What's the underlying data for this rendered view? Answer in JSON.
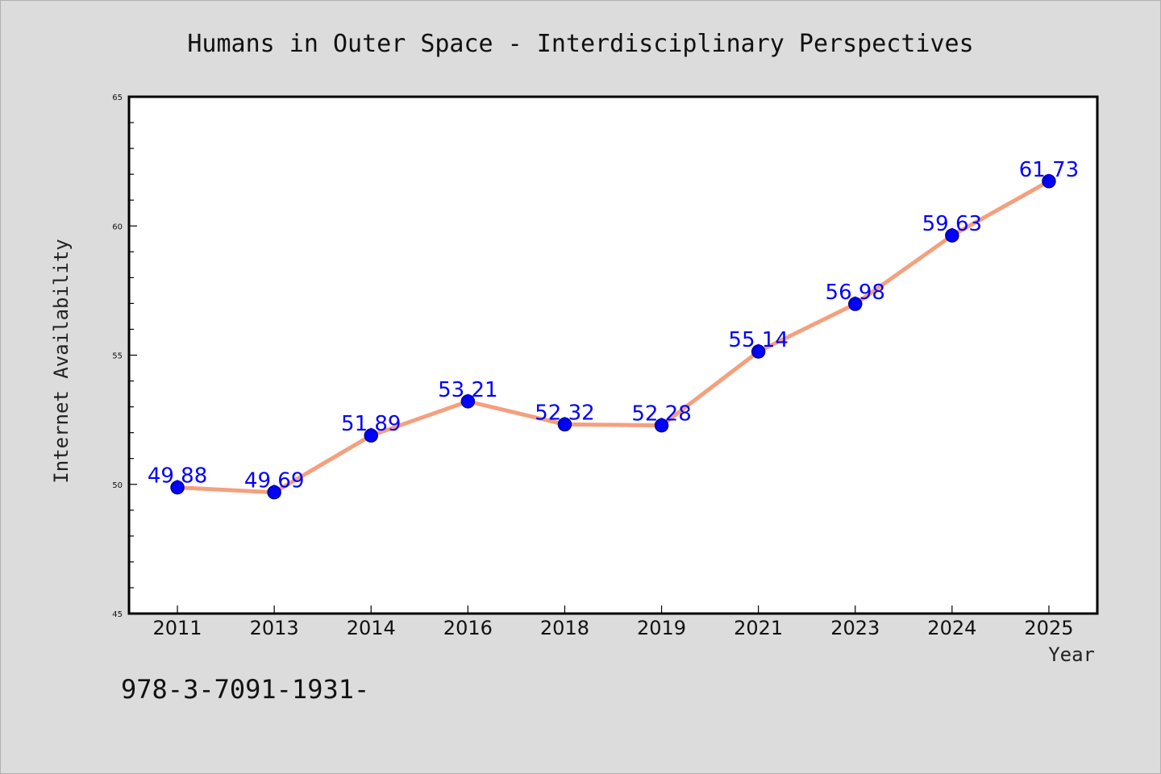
{
  "chart_data": {
    "type": "line",
    "title": "Humans in Outer Space - Interdisciplinary Perspectives",
    "xlabel": "Year",
    "ylabel": "Internet Availability",
    "categories": [
      "2011",
      "2013",
      "2014",
      "2016",
      "2018",
      "2019",
      "2021",
      "2023",
      "2024",
      "2025"
    ],
    "series": [
      {
        "values": [
          49.88,
          49.69,
          51.89,
          53.21,
          52.32,
          52.28,
          55.14,
          56.98,
          59.63,
          61.73
        ],
        "data_labels": [
          "49.88",
          "49.69",
          "51.89",
          "53.21",
          "52.32",
          "52.28",
          "55.14",
          "56.98",
          "59.63",
          "61.73"
        ]
      }
    ],
    "ylim": [
      45,
      65
    ],
    "yticks": [
      "45",
      "50",
      "55",
      "60",
      "65"
    ],
    "grid": false,
    "legend": "none"
  },
  "colors": {
    "line": "#f4a07e",
    "marker": "#0000ff",
    "marker_edge": "#00008b",
    "data_label": "#0000ff",
    "background": "#dcdcdc",
    "plot_background": "#ffffff"
  },
  "footnote": "978-3-7091-1931-"
}
